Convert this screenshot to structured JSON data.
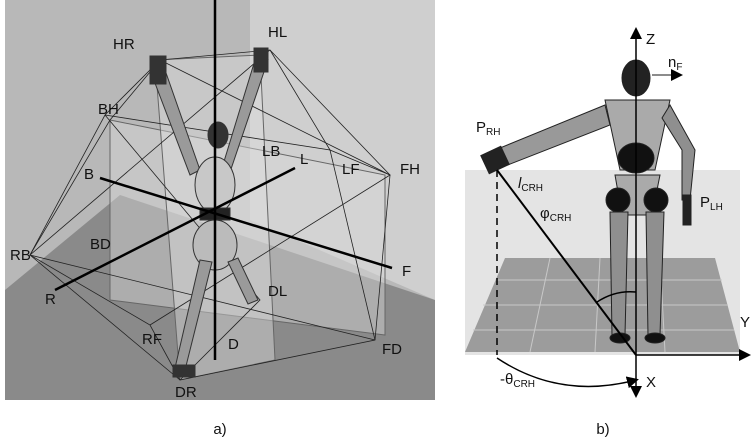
{
  "panel_a": {
    "labels": [
      "HR",
      "HL",
      "BH",
      "LB",
      "L",
      "LF",
      "FH",
      "B",
      "RB",
      "BD",
      "R",
      "F",
      "DL",
      "RF",
      "D",
      "FD",
      "DR"
    ],
    "caption": "a)"
  },
  "panel_b": {
    "z_axis": "Z",
    "normal": {
      "base": "n",
      "sub": "F"
    },
    "p_rh": {
      "base": "P",
      "sub": "RH"
    },
    "length": {
      "base": "l",
      "sub": "CRH"
    },
    "phi": {
      "base": "φ",
      "sub": "CRH"
    },
    "p_lh": {
      "base": "P",
      "sub": "LH"
    },
    "y_axis": "Y",
    "x_axis": "X",
    "theta": {
      "base": "-θ",
      "sub": "CRH"
    },
    "caption": "b)"
  }
}
